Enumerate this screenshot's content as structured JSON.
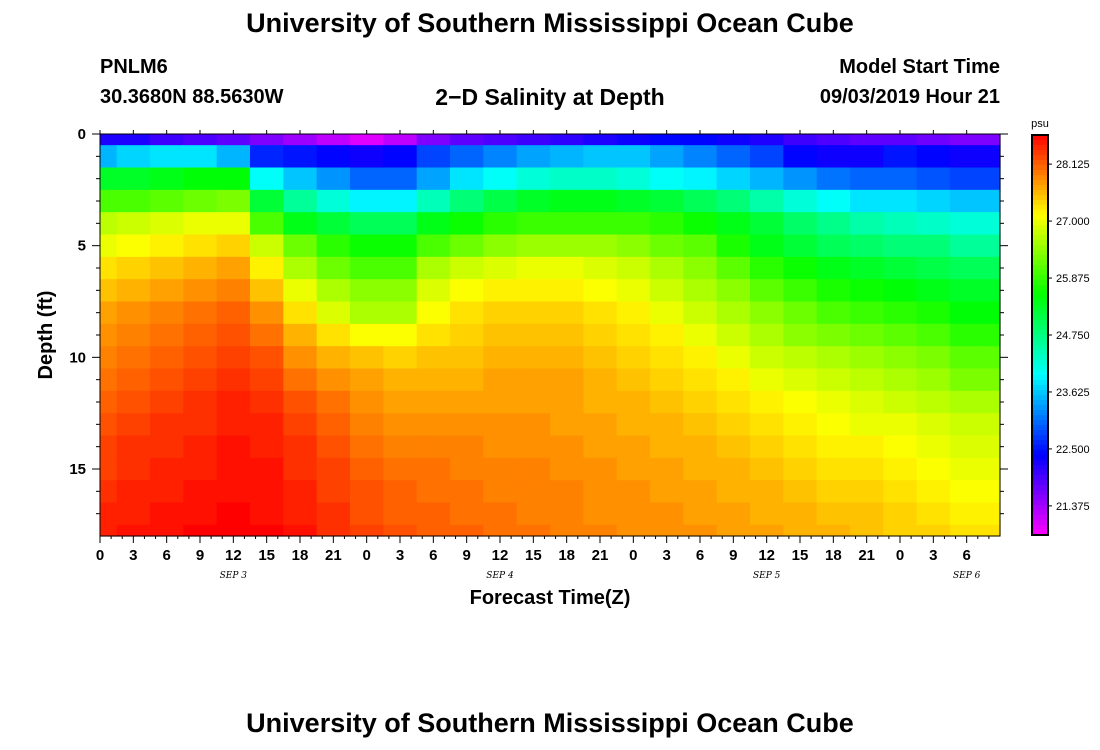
{
  "header": {
    "title_top": "University of Southern Mississippi Ocean Cube",
    "station_id": "PNLM6",
    "station_coords": "30.3680N 88.5630W",
    "plot_title": "2−D Salinity at Depth",
    "model_start_label": "Model Start Time",
    "model_start_value": "09/03/2019 Hour 21"
  },
  "footer": {
    "title_bottom": "University of Southern Mississippi Ocean Cube"
  },
  "chart_data": {
    "type": "heatmap",
    "title": "2−D Salinity at Depth",
    "xlabel": "Forecast Time(Z)",
    "ylabel": "Depth (ft)",
    "colorbar_unit": "psu",
    "colorbar_ticks": [
      "28.125",
      "27.000",
      "25.875",
      "24.750",
      "23.625",
      "22.500",
      "21.375"
    ],
    "colorbar_values": [
      28.125,
      27.0,
      25.875,
      24.75,
      23.625,
      22.5,
      21.375
    ],
    "crange": [
      20.8,
      28.7
    ],
    "x_tick_labels": [
      "0",
      "3",
      "6",
      "9",
      "12",
      "15",
      "18",
      "21",
      "0",
      "3",
      "6",
      "9",
      "12",
      "15",
      "18",
      "21",
      "0",
      "3",
      "6",
      "9",
      "12",
      "15",
      "18",
      "21",
      "0",
      "3",
      "6"
    ],
    "date_labels": [
      {
        "label": "SEP 3",
        "hour": 12
      },
      {
        "label": "SEP 4",
        "hour": 36
      },
      {
        "label": "SEP 5",
        "hour": 60
      },
      {
        "label": "SEP 6",
        "hour": 78
      }
    ],
    "xlim": [
      0,
      81
    ],
    "y_tick_labels": [
      "0",
      "5",
      "10",
      "15"
    ],
    "y_tick_values": [
      0,
      5,
      10,
      15
    ],
    "ylim": [
      0,
      18
    ],
    "time_hours": [
      0,
      3,
      6,
      9,
      12,
      15,
      18,
      21,
      24,
      27,
      30,
      33,
      36,
      39,
      42,
      45,
      48,
      51,
      54,
      57,
      60,
      63,
      66,
      69,
      72,
      75,
      78,
      81
    ],
    "depth_levels_ft": [
      0,
      1,
      2,
      3,
      4,
      5,
      6,
      7,
      8,
      9,
      10,
      11,
      12,
      13,
      14,
      15,
      16,
      17,
      18
    ],
    "salinity_psu": [
      [
        22.2,
        22.2,
        22.0,
        21.9,
        21.8,
        21.6,
        21.4,
        21.2,
        21.0,
        21.2,
        21.6,
        21.8,
        21.9,
        22.0,
        22.1,
        22.2,
        22.3,
        22.4,
        22.4,
        22.3,
        22.2,
        22.0,
        21.9,
        21.8,
        21.8,
        21.7,
        21.6,
        21.6
      ],
      [
        23.5,
        23.7,
        23.8,
        23.8,
        23.5,
        22.6,
        22.5,
        22.4,
        22.3,
        22.4,
        22.8,
        23.0,
        23.2,
        23.4,
        23.5,
        23.6,
        23.6,
        23.4,
        23.2,
        23.0,
        22.8,
        22.4,
        22.3,
        22.3,
        22.5,
        22.4,
        22.3,
        22.3
      ],
      [
        25.3,
        25.3,
        25.4,
        25.5,
        25.5,
        24.0,
        23.6,
        23.3,
        23.0,
        23.0,
        23.4,
        23.8,
        24.0,
        24.2,
        24.3,
        24.3,
        24.2,
        24.0,
        23.9,
        23.7,
        23.5,
        23.3,
        23.1,
        23.0,
        23.0,
        22.9,
        22.8,
        22.8
      ],
      [
        26.0,
        26.0,
        26.1,
        26.2,
        26.3,
        25.2,
        24.6,
        24.2,
        23.9,
        23.9,
        24.4,
        24.8,
        25.1,
        25.3,
        25.4,
        25.4,
        25.3,
        25.2,
        25.0,
        24.8,
        24.5,
        24.2,
        24.0,
        23.8,
        23.8,
        23.7,
        23.6,
        23.6
      ],
      [
        26.7,
        26.8,
        26.9,
        27.0,
        27.0,
        26.0,
        25.4,
        25.2,
        25.0,
        25.0,
        25.4,
        25.6,
        25.8,
        25.9,
        25.9,
        25.9,
        25.9,
        25.8,
        25.6,
        25.4,
        25.2,
        24.9,
        24.7,
        24.5,
        24.4,
        24.3,
        24.2,
        24.2
      ],
      [
        27.0,
        27.1,
        27.2,
        27.3,
        27.4,
        26.8,
        26.2,
        25.8,
        25.6,
        25.6,
        26.0,
        26.2,
        26.4,
        26.5,
        26.5,
        26.5,
        26.4,
        26.2,
        26.1,
        25.7,
        25.4,
        25.2,
        25.0,
        24.9,
        24.8,
        24.8,
        24.6,
        24.6
      ],
      [
        27.3,
        27.4,
        27.5,
        27.6,
        27.7,
        27.2,
        26.6,
        26.2,
        26.0,
        26.0,
        26.6,
        26.8,
        26.9,
        27.0,
        27.0,
        26.9,
        26.8,
        26.6,
        26.4,
        26.1,
        25.8,
        25.6,
        25.4,
        25.3,
        25.2,
        25.1,
        25.0,
        25.0
      ],
      [
        27.5,
        27.6,
        27.7,
        27.8,
        27.9,
        27.5,
        27.0,
        26.6,
        26.4,
        26.4,
        26.9,
        27.1,
        27.2,
        27.2,
        27.2,
        27.1,
        27.0,
        26.8,
        26.6,
        26.4,
        26.1,
        25.9,
        25.7,
        25.6,
        25.5,
        25.4,
        25.3,
        25.3
      ],
      [
        27.7,
        27.8,
        27.9,
        28.0,
        28.1,
        27.8,
        27.3,
        26.9,
        26.6,
        26.6,
        27.1,
        27.3,
        27.4,
        27.4,
        27.4,
        27.3,
        27.2,
        27.0,
        26.8,
        26.6,
        26.4,
        26.2,
        26.0,
        25.9,
        25.8,
        25.7,
        25.5,
        25.5
      ],
      [
        27.8,
        27.9,
        28.0,
        28.1,
        28.2,
        28.0,
        27.6,
        27.3,
        27.1,
        27.1,
        27.3,
        27.4,
        27.5,
        27.5,
        27.5,
        27.4,
        27.3,
        27.2,
        27.0,
        26.8,
        26.6,
        26.4,
        26.3,
        26.2,
        26.1,
        26.0,
        25.8,
        25.8
      ],
      [
        27.9,
        28.0,
        28.1,
        28.2,
        28.3,
        28.2,
        27.8,
        27.6,
        27.5,
        27.4,
        27.5,
        27.5,
        27.6,
        27.6,
        27.6,
        27.5,
        27.4,
        27.3,
        27.2,
        27.0,
        26.8,
        26.7,
        26.6,
        26.5,
        26.4,
        26.3,
        26.1,
        26.1
      ],
      [
        28.0,
        28.1,
        28.2,
        28.3,
        28.4,
        28.3,
        28.0,
        27.8,
        27.7,
        27.6,
        27.6,
        27.6,
        27.7,
        27.7,
        27.7,
        27.6,
        27.5,
        27.4,
        27.3,
        27.2,
        27.0,
        26.9,
        26.8,
        26.7,
        26.6,
        26.5,
        26.3,
        26.3
      ],
      [
        28.1,
        28.2,
        28.3,
        28.4,
        28.5,
        28.4,
        28.2,
        28.0,
        27.8,
        27.7,
        27.7,
        27.7,
        27.7,
        27.7,
        27.7,
        27.6,
        27.6,
        27.5,
        27.4,
        27.3,
        27.2,
        27.1,
        27.0,
        26.9,
        26.8,
        26.7,
        26.6,
        26.6
      ],
      [
        28.2,
        28.3,
        28.4,
        28.4,
        28.5,
        28.5,
        28.3,
        28.1,
        27.9,
        27.8,
        27.8,
        27.8,
        27.8,
        27.8,
        27.7,
        27.7,
        27.6,
        27.6,
        27.5,
        27.4,
        27.3,
        27.2,
        27.1,
        27.0,
        27.0,
        26.9,
        26.8,
        26.8
      ],
      [
        28.3,
        28.4,
        28.4,
        28.5,
        28.6,
        28.5,
        28.4,
        28.2,
        28.0,
        27.9,
        27.9,
        27.9,
        27.8,
        27.8,
        27.8,
        27.7,
        27.7,
        27.6,
        27.6,
        27.5,
        27.4,
        27.3,
        27.2,
        27.2,
        27.1,
        27.0,
        26.9,
        26.9
      ],
      [
        28.3,
        28.4,
        28.5,
        28.5,
        28.6,
        28.6,
        28.4,
        28.3,
        28.1,
        28.0,
        28.0,
        27.9,
        27.9,
        27.9,
        27.8,
        27.8,
        27.7,
        27.7,
        27.6,
        27.6,
        27.5,
        27.4,
        27.3,
        27.3,
        27.2,
        27.1,
        27.0,
        27.0
      ],
      [
        28.4,
        28.5,
        28.5,
        28.6,
        28.6,
        28.6,
        28.5,
        28.3,
        28.2,
        28.1,
        28.0,
        28.0,
        27.9,
        27.9,
        27.9,
        27.8,
        27.8,
        27.7,
        27.7,
        27.6,
        27.6,
        27.5,
        27.4,
        27.4,
        27.3,
        27.2,
        27.1,
        27.1
      ],
      [
        28.5,
        28.5,
        28.6,
        28.6,
        28.7,
        28.6,
        28.5,
        28.4,
        28.2,
        28.1,
        28.1,
        28.0,
        28.0,
        27.9,
        27.9,
        27.8,
        27.8,
        27.8,
        27.7,
        27.7,
        27.6,
        27.6,
        27.5,
        27.5,
        27.4,
        27.3,
        27.2,
        27.2
      ],
      [
        28.5,
        28.6,
        28.6,
        28.7,
        28.7,
        28.7,
        28.6,
        28.4,
        28.3,
        28.2,
        28.1,
        28.1,
        28.0,
        28.0,
        27.9,
        27.9,
        27.8,
        27.8,
        27.8,
        27.7,
        27.7,
        27.6,
        27.6,
        27.5,
        27.4,
        27.4,
        27.3,
        27.3
      ]
    ]
  }
}
